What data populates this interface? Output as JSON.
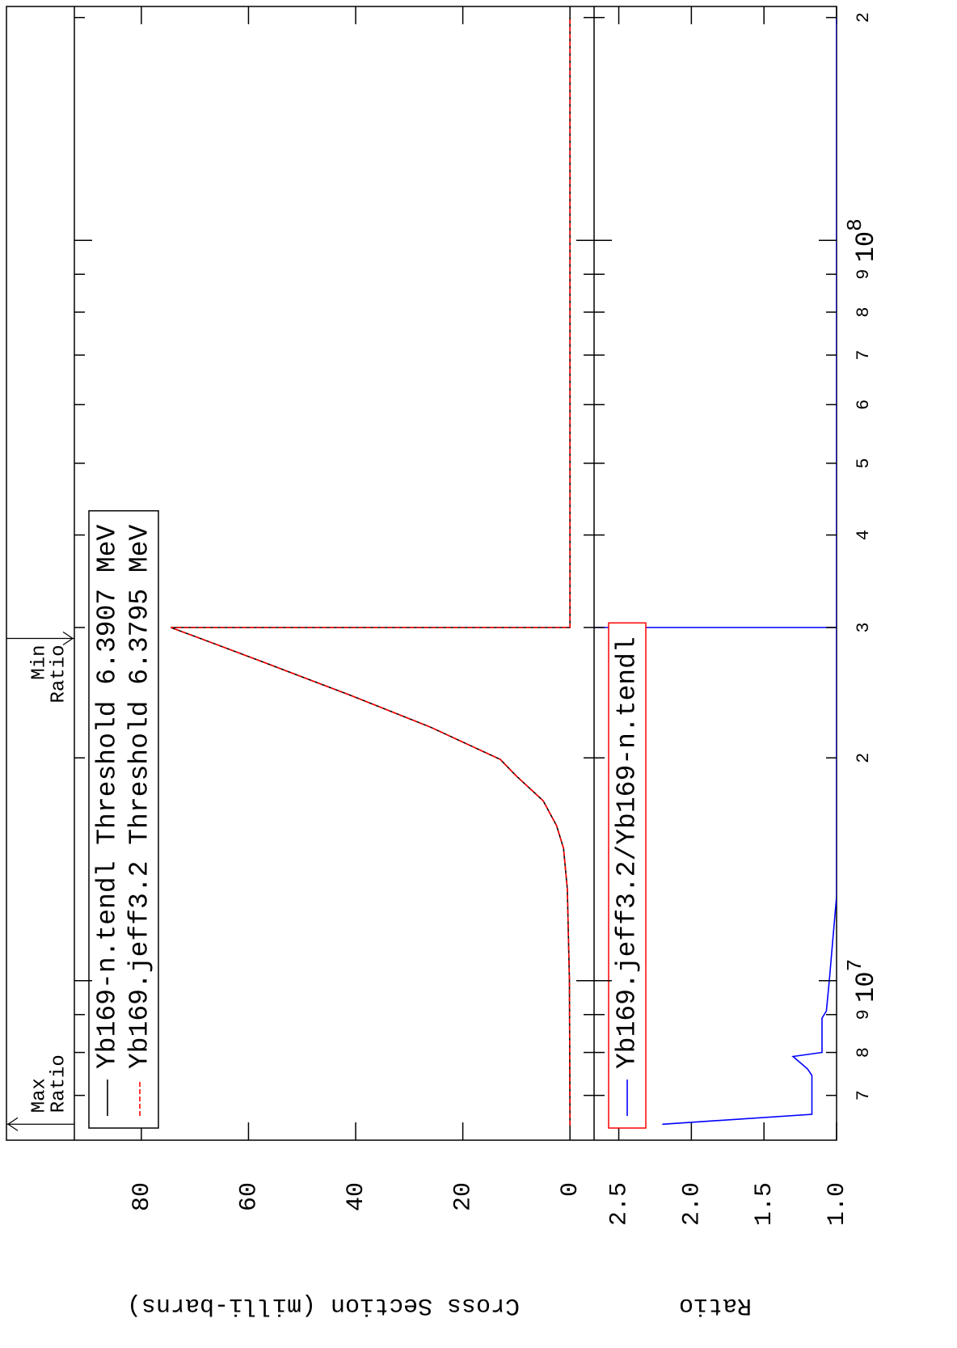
{
  "chart_data": [
    {
      "type": "line",
      "ylabel": "Cross Section (milli-barns)",
      "xlog": true,
      "xlim": [
        6090000,
        207000000
      ],
      "ylim": [
        -4.5,
        92.5
      ],
      "yticks": [
        0,
        20,
        40,
        60,
        80
      ],
      "legend": "upper left",
      "annotations": [
        {
          "lines": [
            "Max",
            "Ratio"
          ],
          "x": 6400000
        },
        {
          "lines": [
            "Min",
            "Ratio"
          ],
          "x": 29000000
        }
      ],
      "series": [
        {
          "name": "Yb169-n.tendl Threshold 6.3907 MeV",
          "color": "#000000",
          "dash": false,
          "x": [
            6390700,
            10000000,
            13300000,
            15100000,
            16200000,
            17500000,
            18900000,
            19900000,
            22000000,
            24300000,
            26900000,
            29000000,
            30000000,
            30000000,
            200000000
          ],
          "values": [
            0,
            0.1,
            0.5,
            1.2,
            2.5,
            5,
            10,
            13,
            26,
            41,
            57,
            69,
            74.5,
            0,
            0
          ]
        },
        {
          "name": "Yb169.jeff3.2 Threshold 6.3795 MeV",
          "color": "#ff0000",
          "dash": true,
          "x": [
            6379500,
            10000000,
            13300000,
            15100000,
            16200000,
            17500000,
            18900000,
            19900000,
            22000000,
            24300000,
            26900000,
            29000000,
            30000000,
            30000000,
            200000000
          ],
          "values": [
            0,
            0.1,
            0.5,
            1.2,
            2.5,
            5,
            10,
            13,
            26,
            41,
            57,
            69,
            74.5,
            0,
            0
          ]
        }
      ]
    },
    {
      "type": "line",
      "ylabel": "Ratio",
      "xlog": true,
      "xlim": [
        6090000,
        207000000
      ],
      "ylim": [
        1.0,
        2.67
      ],
      "yticks": [
        {
          "value": 1.0,
          "label": "1.0"
        },
        1.5,
        {
          "value": 2.0,
          "label": "2.0"
        },
        2.5
      ],
      "xticks": [
        7000000,
        8000000,
        9000000,
        {
          "value": 10000000,
          "label": "10",
          "exponent": "7"
        },
        20000000,
        30000000,
        40000000,
        50000000,
        60000000,
        70000000,
        80000000,
        90000000,
        {
          "value": 100000000,
          "label": "10",
          "exponent": "8"
        },
        200000000
      ],
      "xtick_labels": [
        "7",
        "8",
        "9",
        null,
        "2",
        "3",
        "4",
        "5",
        "6",
        "7",
        "8",
        "9",
        null,
        "2"
      ],
      "legend": "upper left",
      "legend_frame_color": "#ff0000",
      "series": [
        {
          "name": "Yb169.jeff3.2/Yb169-n.tendl",
          "color": "#0000ff",
          "dash": false,
          "x": [
            6400000,
            6600000,
            7450000,
            7600000,
            7900000,
            8000000,
            8900000,
            9100000,
            10000000,
            13000000,
            30000000,
            30000000,
            30000000,
            200000000
          ],
          "values": [
            2.2,
            1.17,
            1.17,
            1.2,
            1.3,
            1.1,
            1.1,
            1.07,
            1.05,
            1.0,
            1.0,
            2.67,
            1.0,
            1.0
          ]
        }
      ]
    }
  ]
}
